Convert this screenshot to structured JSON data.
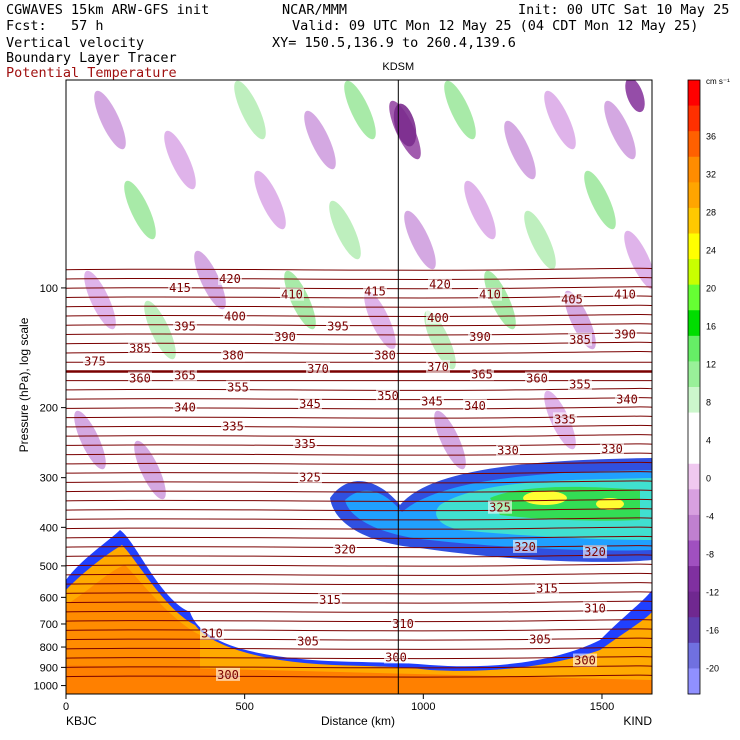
{
  "header": {
    "title": "CGWAVES 15km ARW-GFS init",
    "fcst": "Fcst:   57 h",
    "source": "NCAR/MMM",
    "init": "Init: 00 UTC Sat 10 May 25",
    "valid": "Valid: 09 UTC Mon 12 May 25 (04 CDT Mon 12 May 25)",
    "xy": "XY= 150.5,136.9 to 260.4,139.6",
    "fields": [
      "Vertical velocity",
      "Boundary Layer Tracer",
      "Potential Temperature"
    ]
  },
  "chart_data": {
    "type": "heatmap",
    "description_fields": [
      "Vertical velocity",
      "Boundary Layer Tracer",
      "Potential Temperature"
    ],
    "xlabel": "Distance (km)",
    "ylabel": "Pressure (hPa), log scale",
    "x_ticks": [
      0,
      500,
      1000,
      1500
    ],
    "xlim": [
      0,
      1640
    ],
    "y_ticks": [
      100,
      200,
      300,
      400,
      500,
      600,
      700,
      800,
      900,
      1000
    ],
    "ylim": [
      1050,
      30
    ],
    "y_scale": "log",
    "left_station": "KBJC",
    "right_station": "KIND",
    "mid_station": "KDSM",
    "mid_station_x": 930,
    "colorbar": {
      "units": "cm s⁻¹",
      "ticks": [
        36,
        32,
        28,
        24,
        20,
        16,
        12,
        8,
        4,
        0,
        -4,
        -8,
        -12,
        -16,
        -20
      ],
      "colors": [
        "#ff0000",
        "#ff3000",
        "#ff6000",
        "#ff8c00",
        "#ffa500",
        "#ffc800",
        "#ffff00",
        "#c8ff00",
        "#66ff33",
        "#00dd00",
        "#66ee66",
        "#99f099",
        "#ccf7cc",
        "#ffffff",
        "#ffffff",
        "#f0c8f0",
        "#d8a0e0",
        "#c080d0",
        "#a050c0",
        "#8030a0",
        "#702890",
        "#6040b0",
        "#7070e0",
        "#9090ff"
      ]
    },
    "theta_labels": [
      {
        "v": "420",
        "x": 230,
        "p": 95
      },
      {
        "v": "415",
        "x": 180,
        "p": 100
      },
      {
        "v": "410",
        "x": 292,
        "p": 104
      },
      {
        "v": "415",
        "x": 375,
        "p": 102
      },
      {
        "v": "420",
        "x": 440,
        "p": 98
      },
      {
        "v": "410",
        "x": 490,
        "p": 104
      },
      {
        "v": "405",
        "x": 572,
        "p": 107
      },
      {
        "v": "410",
        "x": 625,
        "p": 104
      },
      {
        "v": "400",
        "x": 235,
        "p": 118
      },
      {
        "v": "395",
        "x": 185,
        "p": 125
      },
      {
        "v": "395",
        "x": 338,
        "p": 125
      },
      {
        "v": "400",
        "x": 438,
        "p": 119
      },
      {
        "v": "390",
        "x": 285,
        "p": 133
      },
      {
        "v": "390",
        "x": 480,
        "p": 133
      },
      {
        "v": "385",
        "x": 580,
        "p": 135
      },
      {
        "v": "390",
        "x": 625,
        "p": 131
      },
      {
        "v": "385",
        "x": 140,
        "p": 142
      },
      {
        "v": "375",
        "x": 95,
        "p": 153
      },
      {
        "v": "380",
        "x": 233,
        "p": 148
      },
      {
        "v": "380",
        "x": 385,
        "p": 148
      },
      {
        "v": "370",
        "x": 318,
        "p": 160
      },
      {
        "v": "370",
        "x": 438,
        "p": 158
      },
      {
        "v": "365",
        "x": 185,
        "p": 166
      },
      {
        "v": "365",
        "x": 482,
        "p": 165
      },
      {
        "v": "360",
        "x": 140,
        "p": 169
      },
      {
        "v": "360",
        "x": 537,
        "p": 169
      },
      {
        "v": "355",
        "x": 238,
        "p": 178
      },
      {
        "v": "355",
        "x": 580,
        "p": 175
      },
      {
        "v": "350",
        "x": 388,
        "p": 187
      },
      {
        "v": "345",
        "x": 310,
        "p": 196
      },
      {
        "v": "345",
        "x": 432,
        "p": 193
      },
      {
        "v": "340",
        "x": 185,
        "p": 200
      },
      {
        "v": "340",
        "x": 475,
        "p": 198
      },
      {
        "v": "340",
        "x": 627,
        "p": 191
      },
      {
        "v": "335",
        "x": 233,
        "p": 223
      },
      {
        "v": "335",
        "x": 565,
        "p": 214
      },
      {
        "v": "335",
        "x": 305,
        "p": 247
      },
      {
        "v": "330",
        "x": 508,
        "p": 256
      },
      {
        "v": "330",
        "x": 612,
        "p": 254
      },
      {
        "v": "325",
        "x": 310,
        "p": 300
      },
      {
        "v": "325",
        "x": 500,
        "p": 357
      },
      {
        "v": "320",
        "x": 345,
        "p": 455
      },
      {
        "v": "320",
        "x": 525,
        "p": 448
      },
      {
        "v": "320",
        "x": 595,
        "p": 462
      },
      {
        "v": "315",
        "x": 330,
        "p": 610
      },
      {
        "v": "315",
        "x": 547,
        "p": 570
      },
      {
        "v": "310",
        "x": 212,
        "p": 740
      },
      {
        "v": "310",
        "x": 403,
        "p": 700
      },
      {
        "v": "310",
        "x": 595,
        "p": 640
      },
      {
        "v": "305",
        "x": 308,
        "p": 775
      },
      {
        "v": "305",
        "x": 540,
        "p": 765
      },
      {
        "v": "300",
        "x": 228,
        "p": 940
      },
      {
        "v": "300",
        "x": 396,
        "p": 850
      },
      {
        "v": "300",
        "x": 585,
        "p": 865
      }
    ]
  }
}
